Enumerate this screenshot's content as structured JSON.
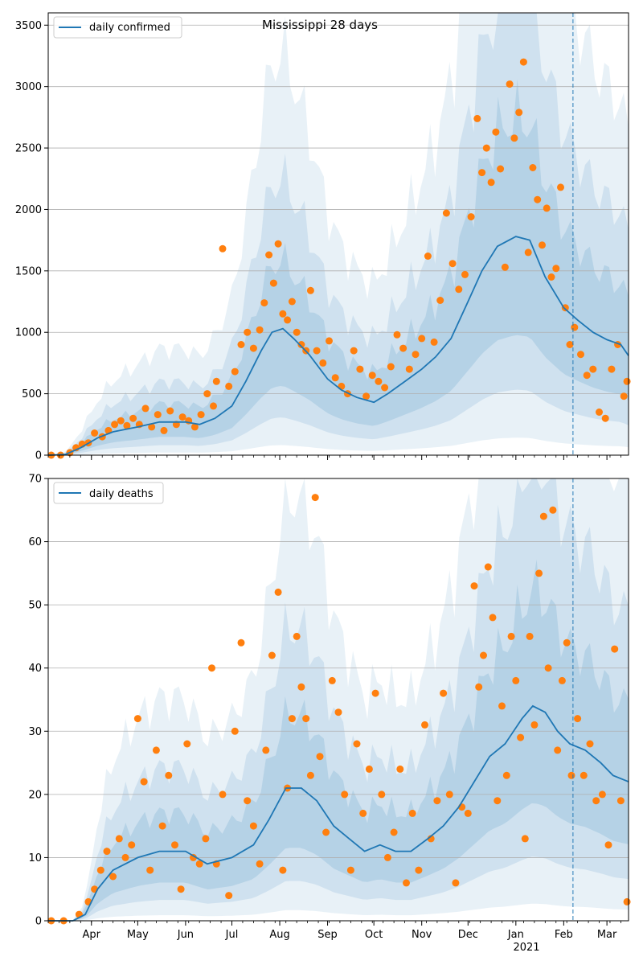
{
  "colors": {
    "line": "#1f77b4",
    "points": "#ff7f0e",
    "band": "#1f77b4",
    "grid": "#b0b0b0",
    "vline": "#1f77b4"
  },
  "chart_data": [
    {
      "type": "scatter",
      "title": "Mississippi 28 days",
      "xlabel": "",
      "ylabel": "",
      "ylim": [
        0,
        3600
      ],
      "yticks": [
        0,
        500,
        1000,
        1500,
        2000,
        2500,
        3000,
        3500
      ],
      "grid": "horizontal",
      "legend": {
        "placement": "top-left",
        "entries": [
          "daily confirmed"
        ]
      },
      "xlim": [
        "2020-03-04",
        "2021-03-15"
      ],
      "forecast_start": "2021-02-07",
      "series": [
        {
          "name": "daily confirmed",
          "kind": "line",
          "x": [
            "2020-03-04",
            "2020-03-15",
            "2020-03-25",
            "2020-04-05",
            "2020-04-15",
            "2020-05-01",
            "2020-05-15",
            "2020-06-01",
            "2020-06-10",
            "2020-06-20",
            "2020-07-01",
            "2020-07-10",
            "2020-07-20",
            "2020-07-27",
            "2020-08-03",
            "2020-08-10",
            "2020-08-20",
            "2020-09-01",
            "2020-09-10",
            "2020-09-20",
            "2020-10-01",
            "2020-10-10",
            "2020-10-20",
            "2020-11-01",
            "2020-11-10",
            "2020-11-20",
            "2020-12-01",
            "2020-12-10",
            "2020-12-20",
            "2021-01-01",
            "2021-01-10",
            "2021-01-20",
            "2021-02-01",
            "2021-02-10",
            "2021-02-20",
            "2021-03-01",
            "2021-03-10",
            "2021-03-15"
          ],
          "y": [
            0,
            5,
            60,
            140,
            190,
            230,
            270,
            270,
            250,
            300,
            400,
            600,
            850,
            1000,
            1030,
            950,
            820,
            620,
            530,
            470,
            430,
            500,
            590,
            700,
            800,
            950,
            1250,
            1500,
            1700,
            1780,
            1750,
            1450,
            1200,
            1100,
            1000,
            940,
            900,
            810
          ]
        },
        {
          "name": "",
          "kind": "points",
          "x": [
            "2020-03-06",
            "2020-03-12",
            "2020-03-18",
            "2020-03-22",
            "2020-03-26",
            "2020-03-30",
            "2020-04-03",
            "2020-04-08",
            "2020-04-12",
            "2020-04-16",
            "2020-04-20",
            "2020-04-24",
            "2020-04-28",
            "2020-05-02",
            "2020-05-06",
            "2020-05-10",
            "2020-05-14",
            "2020-05-18",
            "2020-05-22",
            "2020-05-26",
            "2020-05-30",
            "2020-06-03",
            "2020-06-07",
            "2020-06-11",
            "2020-06-15",
            "2020-06-19",
            "2020-06-21",
            "2020-06-25",
            "2020-06-29",
            "2020-07-03",
            "2020-07-07",
            "2020-07-11",
            "2020-07-15",
            "2020-07-19",
            "2020-07-22",
            "2020-07-25",
            "2020-07-28",
            "2020-07-31",
            "2020-08-03",
            "2020-08-06",
            "2020-08-09",
            "2020-08-12",
            "2020-08-15",
            "2020-08-18",
            "2020-08-21",
            "2020-08-25",
            "2020-08-29",
            "2020-09-02",
            "2020-09-06",
            "2020-09-10",
            "2020-09-14",
            "2020-09-18",
            "2020-09-22",
            "2020-09-26",
            "2020-09-30",
            "2020-10-04",
            "2020-10-08",
            "2020-10-12",
            "2020-10-16",
            "2020-10-20",
            "2020-10-24",
            "2020-10-28",
            "2020-11-01",
            "2020-11-05",
            "2020-11-09",
            "2020-11-13",
            "2020-11-17",
            "2020-11-21",
            "2020-11-25",
            "2020-11-29",
            "2020-12-03",
            "2020-12-07",
            "2020-12-10",
            "2020-12-13",
            "2020-12-16",
            "2020-12-19",
            "2020-12-22",
            "2020-12-25",
            "2020-12-28",
            "2020-12-31",
            "2021-01-03",
            "2021-01-06",
            "2021-01-09",
            "2021-01-12",
            "2021-01-15",
            "2021-01-18",
            "2021-01-21",
            "2021-01-24",
            "2021-01-27",
            "2021-01-30",
            "2021-02-02",
            "2021-02-05",
            "2021-02-08",
            "2021-02-12",
            "2021-02-16",
            "2021-02-20",
            "2021-02-24",
            "2021-02-28",
            "2021-03-04",
            "2021-03-08",
            "2021-03-12",
            "2021-03-14"
          ],
          "y": [
            0,
            0,
            20,
            60,
            90,
            100,
            180,
            150,
            200,
            250,
            280,
            240,
            300,
            250,
            380,
            230,
            330,
            200,
            360,
            250,
            310,
            280,
            230,
            330,
            500,
            400,
            600,
            1680,
            560,
            680,
            900,
            1000,
            870,
            1020,
            1240,
            1630,
            1400,
            1720,
            1150,
            1100,
            1250,
            1000,
            900,
            850,
            1340,
            850,
            750,
            930,
            630,
            560,
            500,
            850,
            700,
            480,
            650,
            600,
            550,
            720,
            980,
            870,
            700,
            820,
            950,
            1620,
            920,
            1260,
            1970,
            1560,
            1350,
            1470,
            1940,
            2740,
            2300,
            2500,
            2220,
            2630,
            2330,
            1530,
            3020,
            2580,
            2790,
            3200,
            1650,
            2340,
            2080,
            1710,
            2010,
            1450,
            1520,
            2180,
            1200,
            900,
            1040,
            820,
            650,
            700,
            350,
            300,
            700,
            900,
            480,
            600
          ]
        }
      ]
    },
    {
      "type": "scatter",
      "title": "",
      "xlabel": "",
      "ylabel": "",
      "ylim": [
        0,
        70
      ],
      "yticks": [
        0,
        10,
        20,
        30,
        40,
        50,
        60,
        70
      ],
      "grid": "horizontal",
      "legend": {
        "placement": "top-left",
        "entries": [
          "daily deaths"
        ]
      },
      "xlim": [
        "2020-03-04",
        "2021-03-15"
      ],
      "xticks": [
        "Apr",
        "May",
        "Jun",
        "Jul",
        "Aug",
        "Sep",
        "Oct",
        "Nov",
        "Dec",
        "Jan",
        "Feb",
        "Mar"
      ],
      "xtick_dates": [
        "2020-04-01",
        "2020-05-01",
        "2020-06-01",
        "2020-07-01",
        "2020-08-01",
        "2020-09-01",
        "2020-10-01",
        "2020-11-01",
        "2020-12-01",
        "2021-01-01",
        "2021-02-01",
        "2021-03-01"
      ],
      "xtick_year": "2021",
      "forecast_start": "2021-02-07",
      "series": [
        {
          "name": "daily deaths",
          "kind": "line",
          "x": [
            "2020-03-04",
            "2020-03-20",
            "2020-03-28",
            "2020-04-05",
            "2020-04-15",
            "2020-05-01",
            "2020-05-15",
            "2020-06-01",
            "2020-06-15",
            "2020-07-01",
            "2020-07-15",
            "2020-07-25",
            "2020-08-05",
            "2020-08-15",
            "2020-08-25",
            "2020-09-05",
            "2020-09-15",
            "2020-09-25",
            "2020-10-05",
            "2020-10-15",
            "2020-10-25",
            "2020-11-05",
            "2020-11-15",
            "2020-11-25",
            "2020-12-05",
            "2020-12-15",
            "2020-12-25",
            "2021-01-05",
            "2021-01-12",
            "2021-01-20",
            "2021-01-28",
            "2021-02-05",
            "2021-02-15",
            "2021-02-25",
            "2021-03-05",
            "2021-03-15"
          ],
          "y": [
            0,
            0,
            1,
            5,
            8,
            10,
            11,
            11,
            9,
            10,
            12,
            16,
            21,
            21,
            19,
            15,
            13,
            11,
            12,
            11,
            11,
            13,
            15,
            18,
            22,
            26,
            28,
            32,
            34,
            33,
            30,
            28,
            27,
            25,
            23,
            22
          ]
        },
        {
          "name": "",
          "kind": "points",
          "x": [
            "2020-03-06",
            "2020-03-14",
            "2020-03-24",
            "2020-03-30",
            "2020-04-03",
            "2020-04-07",
            "2020-04-11",
            "2020-04-15",
            "2020-04-19",
            "2020-04-23",
            "2020-04-27",
            "2020-05-01",
            "2020-05-05",
            "2020-05-09",
            "2020-05-13",
            "2020-05-17",
            "2020-05-21",
            "2020-05-25",
            "2020-05-29",
            "2020-06-02",
            "2020-06-06",
            "2020-06-10",
            "2020-06-14",
            "2020-06-18",
            "2020-06-21",
            "2020-06-25",
            "2020-06-29",
            "2020-07-03",
            "2020-07-07",
            "2020-07-11",
            "2020-07-15",
            "2020-07-19",
            "2020-07-23",
            "2020-07-27",
            "2020-07-31",
            "2020-08-03",
            "2020-08-06",
            "2020-08-09",
            "2020-08-12",
            "2020-08-15",
            "2020-08-18",
            "2020-08-21",
            "2020-08-24",
            "2020-08-27",
            "2020-08-31",
            "2020-09-04",
            "2020-09-08",
            "2020-09-12",
            "2020-09-16",
            "2020-09-20",
            "2020-09-24",
            "2020-09-28",
            "2020-10-02",
            "2020-10-06",
            "2020-10-10",
            "2020-10-14",
            "2020-10-18",
            "2020-10-22",
            "2020-10-26",
            "2020-10-30",
            "2020-11-03",
            "2020-11-07",
            "2020-11-11",
            "2020-11-15",
            "2020-11-19",
            "2020-11-23",
            "2020-11-27",
            "2020-12-01",
            "2020-12-05",
            "2020-12-08",
            "2020-12-11",
            "2020-12-14",
            "2020-12-17",
            "2020-12-20",
            "2020-12-23",
            "2020-12-26",
            "2020-12-29",
            "2021-01-01",
            "2021-01-04",
            "2021-01-07",
            "2021-01-10",
            "2021-01-13",
            "2021-01-16",
            "2021-01-19",
            "2021-01-22",
            "2021-01-25",
            "2021-01-28",
            "2021-01-31",
            "2021-02-03",
            "2021-02-06",
            "2021-02-10",
            "2021-02-14",
            "2021-02-18",
            "2021-02-22",
            "2021-02-26",
            "2021-03-02",
            "2021-03-06",
            "2021-03-10",
            "2021-03-14"
          ],
          "y": [
            0,
            0,
            1,
            3,
            5,
            8,
            11,
            7,
            13,
            10,
            12,
            32,
            22,
            8,
            27,
            15,
            23,
            12,
            5,
            28,
            10,
            9,
            13,
            40,
            9,
            20,
            4,
            30,
            44,
            19,
            15,
            9,
            27,
            42,
            52,
            8,
            21,
            32,
            45,
            37,
            32,
            23,
            67,
            26,
            14,
            38,
            33,
            20,
            8,
            28,
            17,
            24,
            36,
            20,
            10,
            14,
            24,
            6,
            17,
            8,
            31,
            13,
            19,
            36,
            20,
            6,
            18,
            17,
            53,
            37,
            42,
            56,
            48,
            19,
            34,
            23,
            45,
            38,
            29,
            13,
            45,
            31,
            55,
            64,
            40,
            65,
            27,
            38,
            44,
            23,
            32,
            23,
            28,
            19,
            20,
            12,
            43,
            19,
            3
          ]
        }
      ]
    }
  ]
}
